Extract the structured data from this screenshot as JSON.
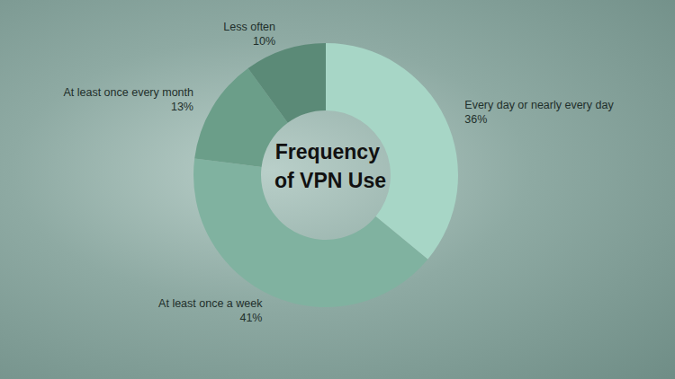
{
  "chart_data": {
    "type": "pie",
    "title": "Frequency of VPN Use",
    "categories": [
      "Every day or nearly every day",
      "At least once a week",
      "At least once every month",
      "Less often"
    ],
    "values": [
      36,
      41,
      13,
      10
    ],
    "value_labels": [
      "36%",
      "41%",
      "13%",
      "10%"
    ],
    "colors": [
      "#a7d6c6",
      "#80b2a0",
      "#6b9e89",
      "#5b8a77"
    ],
    "data_labels": true
  }
}
